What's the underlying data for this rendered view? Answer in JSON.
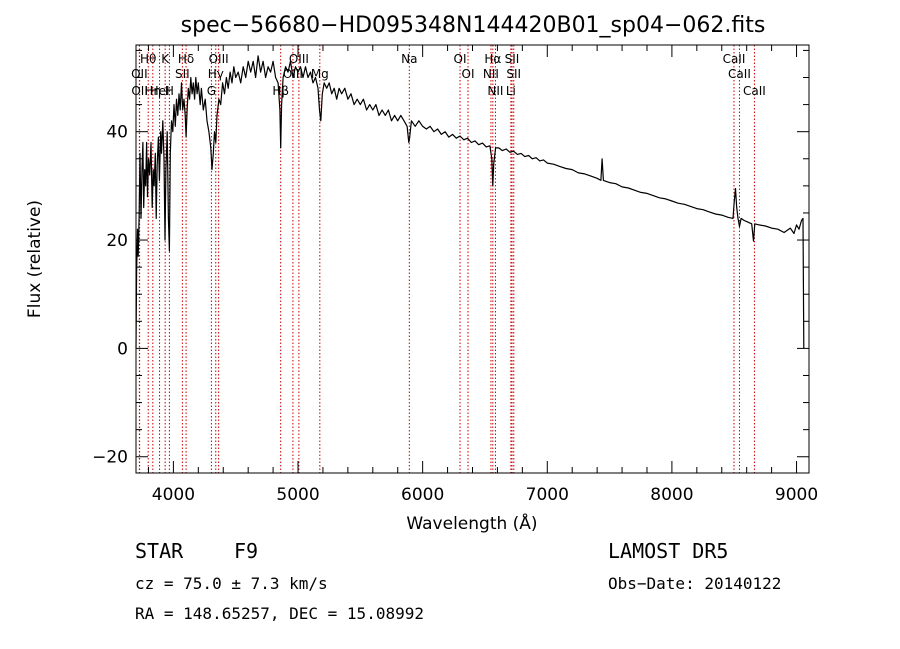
{
  "chart_data": {
    "type": "line",
    "title": "spec−56680−HD095348N144420B01_sp04−062.fits",
    "xlabel": "Wavelength (Å)",
    "ylabel": "Flux (relative)",
    "xlim": [
      3700,
      9100
    ],
    "ylim": [
      -23,
      56
    ],
    "x_ticks": [
      4000,
      5000,
      6000,
      7000,
      8000,
      9000
    ],
    "y_ticks": [
      -20,
      0,
      20,
      40
    ],
    "grid": false,
    "series": [
      {
        "values": [
          [
            3700,
            0
          ],
          [
            3705,
            14
          ],
          [
            3712,
            22
          ],
          [
            3718,
            17
          ],
          [
            3725,
            24
          ],
          [
            3732,
            36
          ],
          [
            3740,
            24
          ],
          [
            3748,
            33
          ],
          [
            3755,
            38
          ],
          [
            3762,
            26
          ],
          [
            3770,
            33
          ],
          [
            3778,
            30
          ],
          [
            3785,
            38
          ],
          [
            3792,
            28
          ],
          [
            3800,
            35
          ],
          [
            3810,
            32
          ],
          [
            3820,
            38
          ],
          [
            3830,
            26
          ],
          [
            3838,
            33
          ],
          [
            3845,
            30
          ],
          [
            3855,
            36
          ],
          [
            3862,
            24
          ],
          [
            3870,
            34
          ],
          [
            3880,
            39
          ],
          [
            3888,
            31
          ],
          [
            3898,
            40
          ],
          [
            3905,
            36
          ],
          [
            3915,
            42
          ],
          [
            3925,
            35
          ],
          [
            3933,
            20
          ],
          [
            3940,
            33
          ],
          [
            3950,
            40
          ],
          [
            3960,
            24
          ],
          [
            3968,
            18
          ],
          [
            3975,
            36
          ],
          [
            3985,
            42
          ],
          [
            3995,
            40
          ],
          [
            4005,
            45
          ],
          [
            4015,
            41
          ],
          [
            4025,
            46
          ],
          [
            4035,
            43
          ],
          [
            4045,
            47
          ],
          [
            4055,
            44
          ],
          [
            4065,
            49
          ],
          [
            4075,
            44
          ],
          [
            4085,
            46
          ],
          [
            4095,
            43
          ],
          [
            4102,
            39
          ],
          [
            4110,
            44
          ],
          [
            4120,
            48
          ],
          [
            4130,
            46
          ],
          [
            4140,
            50
          ],
          [
            4150,
            47
          ],
          [
            4160,
            49
          ],
          [
            4170,
            46
          ],
          [
            4180,
            50
          ],
          [
            4190,
            47
          ],
          [
            4200,
            49
          ],
          [
            4215,
            45
          ],
          [
            4225,
            48
          ],
          [
            4240,
            44
          ],
          [
            4255,
            46
          ],
          [
            4270,
            42
          ],
          [
            4285,
            40
          ],
          [
            4300,
            37
          ],
          [
            4310,
            33
          ],
          [
            4320,
            36
          ],
          [
            4330,
            40
          ],
          [
            4340,
            38
          ],
          [
            4350,
            43
          ],
          [
            4365,
            46
          ],
          [
            4380,
            45
          ],
          [
            4395,
            49
          ],
          [
            4410,
            47
          ],
          [
            4425,
            50
          ],
          [
            4440,
            48
          ],
          [
            4455,
            51
          ],
          [
            4470,
            49
          ],
          [
            4485,
            52
          ],
          [
            4500,
            50
          ],
          [
            4520,
            51
          ],
          [
            4540,
            49
          ],
          [
            4560,
            52
          ],
          [
            4580,
            50
          ],
          [
            4600,
            53
          ],
          [
            4620,
            51
          ],
          [
            4640,
            53
          ],
          [
            4660,
            50
          ],
          [
            4680,
            54
          ],
          [
            4700,
            51
          ],
          [
            4720,
            53
          ],
          [
            4740,
            50
          ],
          [
            4760,
            52
          ],
          [
            4780,
            51
          ],
          [
            4800,
            53
          ],
          [
            4820,
            50
          ],
          [
            4840,
            49
          ],
          [
            4855,
            44
          ],
          [
            4861,
            37
          ],
          [
            4868,
            45
          ],
          [
            4880,
            50
          ],
          [
            4900,
            52
          ],
          [
            4920,
            51
          ],
          [
            4940,
            53
          ],
          [
            4960,
            50
          ],
          [
            4980,
            52
          ],
          [
            5000,
            51
          ],
          [
            5020,
            52
          ],
          [
            5040,
            50
          ],
          [
            5060,
            52
          ],
          [
            5080,
            50
          ],
          [
            5100,
            51
          ],
          [
            5120,
            49
          ],
          [
            5140,
            50
          ],
          [
            5160,
            48
          ],
          [
            5172,
            44
          ],
          [
            5183,
            42
          ],
          [
            5195,
            47
          ],
          [
            5210,
            49
          ],
          [
            5230,
            48
          ],
          [
            5250,
            49
          ],
          [
            5270,
            47
          ],
          [
            5290,
            48
          ],
          [
            5310,
            46
          ],
          [
            5330,
            48
          ],
          [
            5350,
            47
          ],
          [
            5375,
            48
          ],
          [
            5400,
            46
          ],
          [
            5425,
            47
          ],
          [
            5450,
            45
          ],
          [
            5475,
            46
          ],
          [
            5500,
            45
          ],
          [
            5525,
            46
          ],
          [
            5550,
            44
          ],
          [
            5575,
            45
          ],
          [
            5600,
            44
          ],
          [
            5625,
            45
          ],
          [
            5650,
            43
          ],
          [
            5675,
            44
          ],
          [
            5700,
            43
          ],
          [
            5725,
            44
          ],
          [
            5750,
            42
          ],
          [
            5775,
            43
          ],
          [
            5800,
            42
          ],
          [
            5825,
            43
          ],
          [
            5850,
            42
          ],
          [
            5875,
            41
          ],
          [
            5889,
            38
          ],
          [
            5896,
            39
          ],
          [
            5910,
            42
          ],
          [
            5940,
            41
          ],
          [
            5970,
            42
          ],
          [
            6000,
            41
          ],
          [
            6030,
            40.5
          ],
          [
            6060,
            41
          ],
          [
            6090,
            40
          ],
          [
            6120,
            40.5
          ],
          [
            6150,
            39.5
          ],
          [
            6180,
            40
          ],
          [
            6210,
            39
          ],
          [
            6240,
            39.5
          ],
          [
            6270,
            38.8
          ],
          [
            6300,
            39.2
          ],
          [
            6330,
            38.5
          ],
          [
            6360,
            38.8
          ],
          [
            6390,
            38
          ],
          [
            6420,
            38.3
          ],
          [
            6450,
            37.6
          ],
          [
            6480,
            37.9
          ],
          [
            6510,
            37.2
          ],
          [
            6540,
            37.4
          ],
          [
            6555,
            35
          ],
          [
            6563,
            30
          ],
          [
            6570,
            34
          ],
          [
            6585,
            37
          ],
          [
            6610,
            37
          ],
          [
            6640,
            36.5
          ],
          [
            6670,
            36.8
          ],
          [
            6700,
            36.2
          ],
          [
            6730,
            36.4
          ],
          [
            6760,
            35.8
          ],
          [
            6790,
            36
          ],
          [
            6820,
            35.4
          ],
          [
            6850,
            35.6
          ],
          [
            6880,
            35
          ],
          [
            6910,
            35.2
          ],
          [
            6940,
            34.6
          ],
          [
            6970,
            34.8
          ],
          [
            7000,
            34.2
          ],
          [
            7050,
            34
          ],
          [
            7100,
            33.6
          ],
          [
            7150,
            33.2
          ],
          [
            7200,
            33
          ],
          [
            7250,
            32.4
          ],
          [
            7300,
            32.2
          ],
          [
            7350,
            31.8
          ],
          [
            7400,
            31.4
          ],
          [
            7430,
            31
          ],
          [
            7440,
            35
          ],
          [
            7450,
            31
          ],
          [
            7500,
            30.6
          ],
          [
            7550,
            30.4
          ],
          [
            7600,
            29.8
          ],
          [
            7650,
            29.6
          ],
          [
            7700,
            29.2
          ],
          [
            7750,
            28.8
          ],
          [
            7800,
            28.6
          ],
          [
            7850,
            28.2
          ],
          [
            7900,
            27.8
          ],
          [
            7950,
            27.6
          ],
          [
            8000,
            27.2
          ],
          [
            8050,
            26.8
          ],
          [
            8100,
            26.6
          ],
          [
            8150,
            26.2
          ],
          [
            8200,
            25.8
          ],
          [
            8250,
            25.6
          ],
          [
            8300,
            25.2
          ],
          [
            8350,
            24.8
          ],
          [
            8400,
            24.6
          ],
          [
            8450,
            24.2
          ],
          [
            8490,
            24
          ],
          [
            8500,
            27
          ],
          [
            8510,
            29.5
          ],
          [
            8520,
            26
          ],
          [
            8530,
            24
          ],
          [
            8542,
            22.5
          ],
          [
            8555,
            24
          ],
          [
            8580,
            23.6
          ],
          [
            8600,
            23.4
          ],
          [
            8620,
            23.2
          ],
          [
            8640,
            23
          ],
          [
            8655,
            19.8
          ],
          [
            8665,
            23
          ],
          [
            8700,
            22.8
          ],
          [
            8750,
            22.6
          ],
          [
            8800,
            22.2
          ],
          [
            8850,
            22
          ],
          [
            8900,
            21.4
          ],
          [
            8950,
            22.2
          ],
          [
            8980,
            21.2
          ],
          [
            9000,
            22.8
          ],
          [
            9020,
            22
          ],
          [
            9040,
            23.6
          ],
          [
            9052,
            24
          ],
          [
            9058,
            0
          ]
        ]
      }
    ],
    "spectral_lines": [
      {
        "label": "Hθ",
        "wavelength": 3798
      },
      {
        "label": "OII",
        "wavelength": 3727
      },
      {
        "label": "OII",
        "wavelength": 3729
      },
      {
        "label": "K",
        "wavelength": 3934
      },
      {
        "label": "HeI",
        "wavelength": 3889
      },
      {
        "label": "Hη",
        "wavelength": 3835
      },
      {
        "label": "Hδ",
        "wavelength": 4102
      },
      {
        "label": "SII",
        "wavelength": 4072
      },
      {
        "label": "H",
        "wavelength": 3968
      },
      {
        "label": "OIII",
        "wavelength": 4363
      },
      {
        "label": "Hγ",
        "wavelength": 4340
      },
      {
        "label": "G",
        "wavelength": 4305
      },
      {
        "label": "OIII",
        "wavelength": 5007
      },
      {
        "label": "OIII",
        "wavelength": 4959
      },
      {
        "label": "Hβ",
        "wavelength": 4861
      },
      {
        "label": "Mg",
        "wavelength": 5175
      },
      {
        "label": "Na",
        "wavelength": 5893
      },
      {
        "label": "OI",
        "wavelength": 6300
      },
      {
        "label": "OI",
        "wavelength": 6364
      },
      {
        "label": "Hα",
        "wavelength": 6563
      },
      {
        "label": "NII",
        "wavelength": 6548
      },
      {
        "label": "NII",
        "wavelength": 6584
      },
      {
        "label": "SII",
        "wavelength": 6717
      },
      {
        "label": "SII",
        "wavelength": 6731
      },
      {
        "label": "Li",
        "wavelength": 6708
      },
      {
        "label": "CaII",
        "wavelength": 8498
      },
      {
        "label": "CaII",
        "wavelength": 8542
      },
      {
        "label": "CaII",
        "wavelength": 8662
      }
    ]
  },
  "footer": {
    "object_class": "STAR",
    "subclass": "F9",
    "survey": "LAMOST DR5",
    "velocity": "cz = 75.0 ± 7.3 km/s",
    "obs_date": "Obs−Date: 20140122",
    "coords": "RA = 148.65257, DEC =  15.08992"
  },
  "colors": {
    "spectrum": "#000000",
    "line_marker": "#cc0000",
    "background": "#ffffff"
  }
}
